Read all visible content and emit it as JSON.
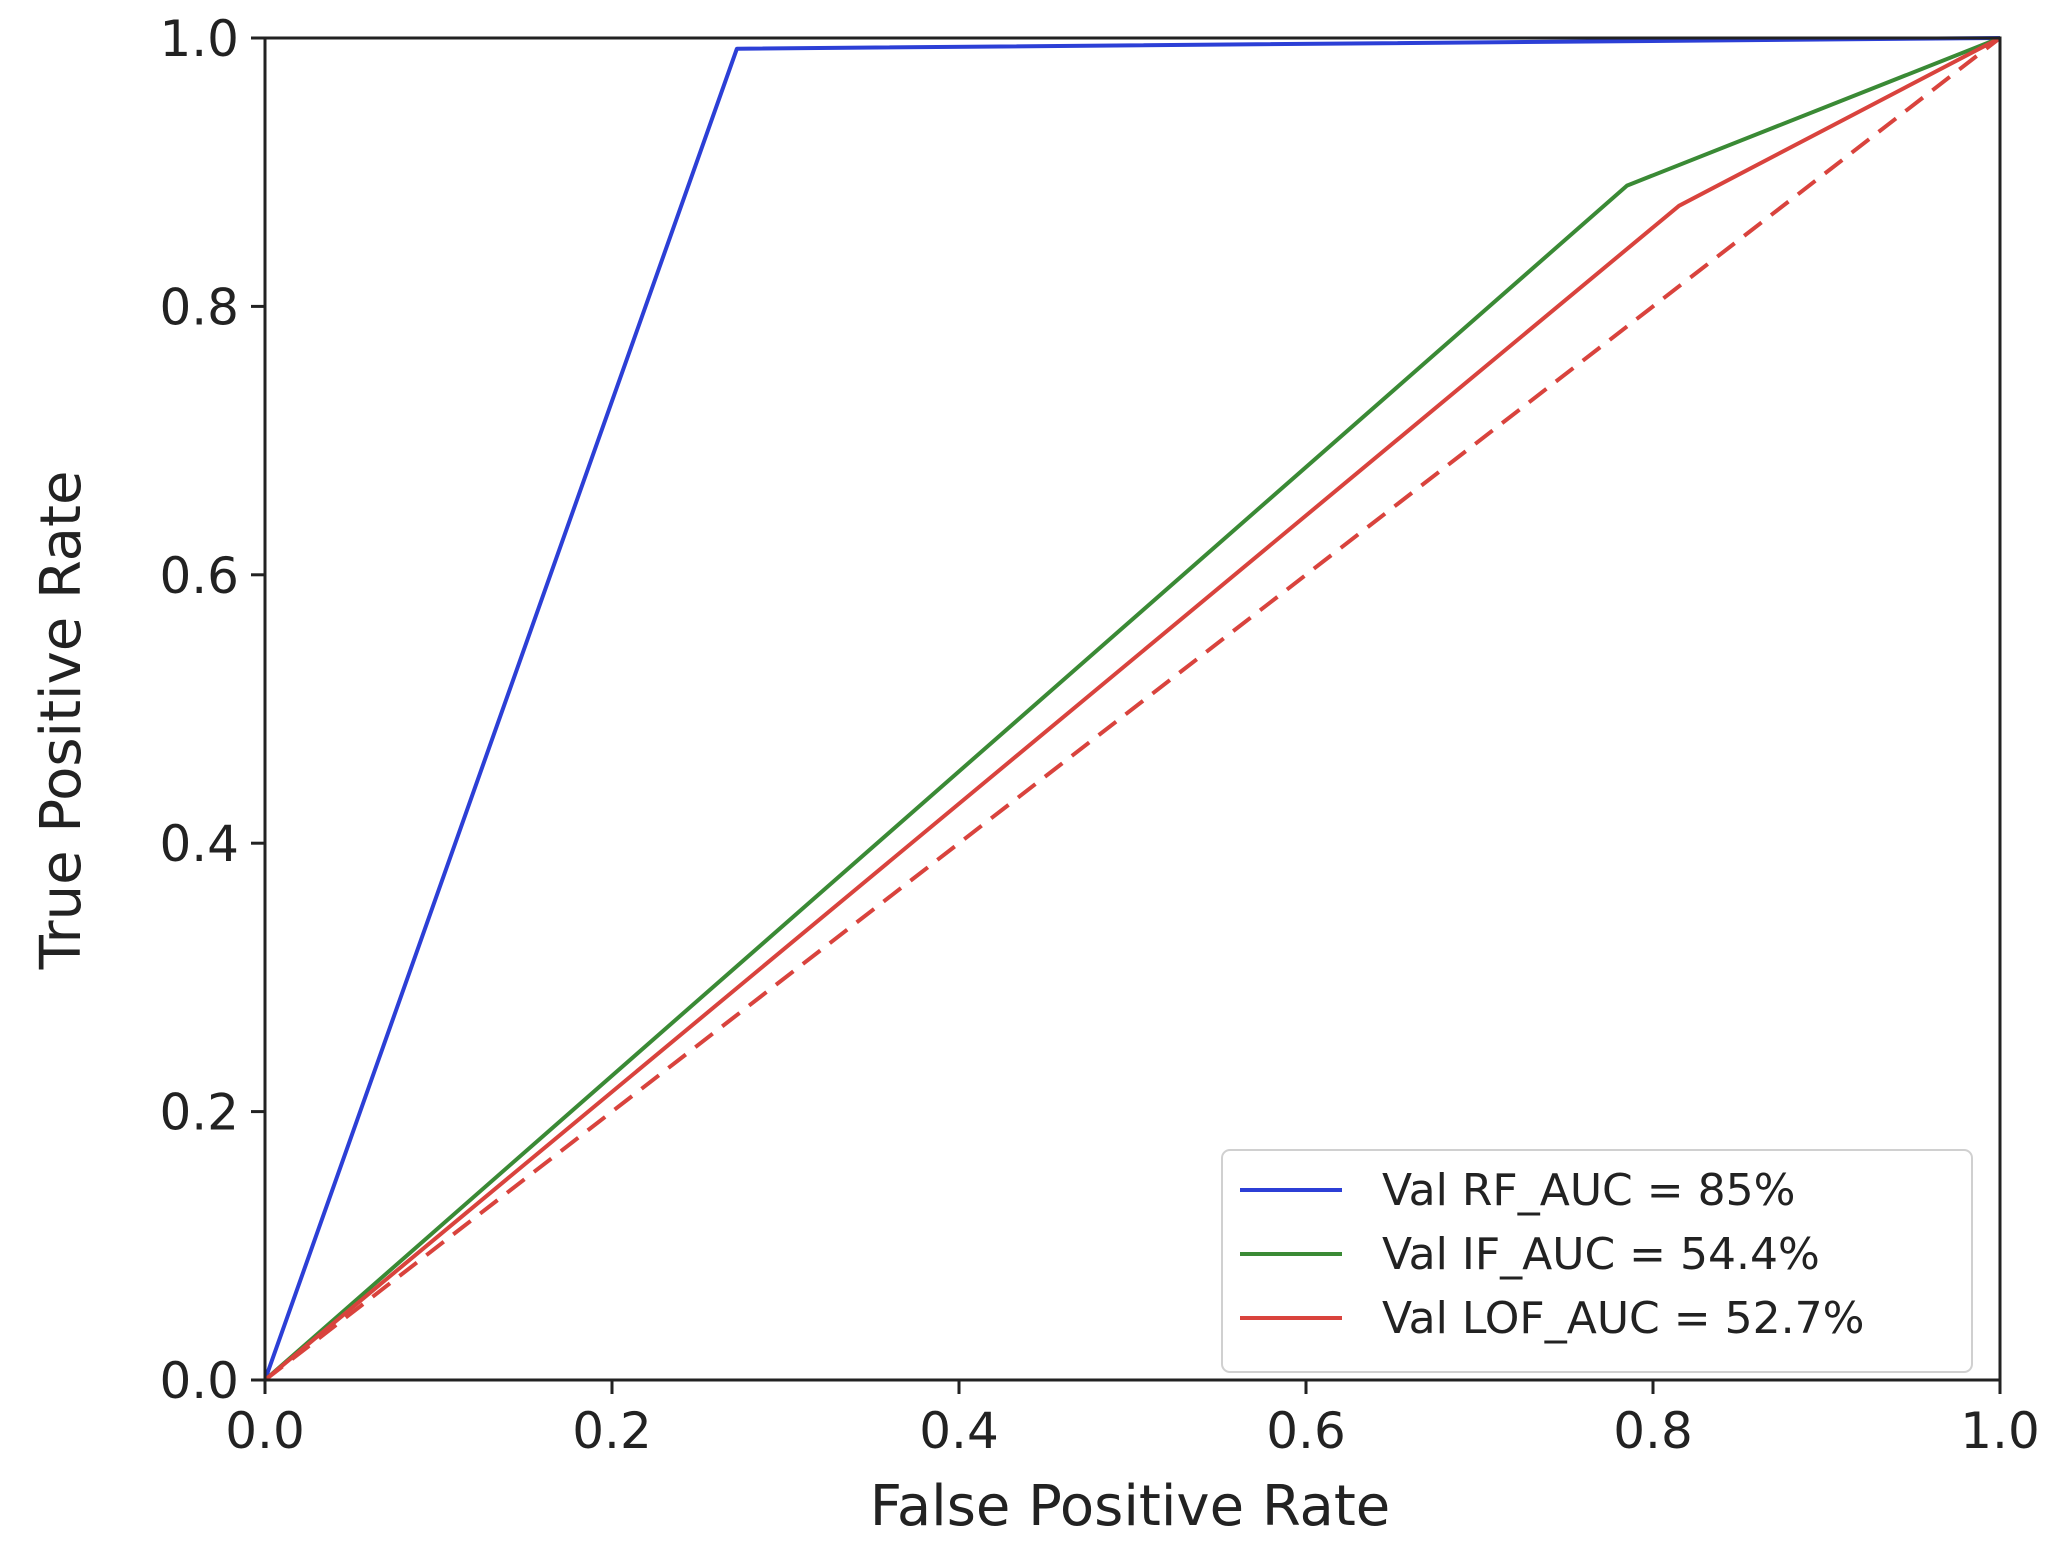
{
  "chart_data": {
    "type": "line",
    "title": "",
    "xlabel": "False Positive Rate",
    "ylabel": "True Positive Rate",
    "xlim": [
      0.0,
      1.0
    ],
    "ylim": [
      0.0,
      1.0
    ],
    "xticks": [
      "0.0",
      "0.2",
      "0.4",
      "0.6",
      "0.8",
      "1.0"
    ],
    "yticks": [
      "0.0",
      "0.2",
      "0.4",
      "0.6",
      "0.8",
      "1.0"
    ],
    "grid": false,
    "legend_position": "lower-right",
    "series": [
      {
        "name": "Val RF_AUC = 85%",
        "color": "#2c3fd6",
        "style": "solid",
        "x": [
          0.0,
          0.272,
          1.0
        ],
        "y": [
          0.0,
          0.992,
          1.0
        ]
      },
      {
        "name": "Val IF_AUC = 54.4%",
        "color": "#3a8a35",
        "style": "solid",
        "x": [
          0.0,
          0.785,
          1.0
        ],
        "y": [
          0.0,
          0.89,
          1.0
        ]
      },
      {
        "name": "Val LOF_AUC = 52.7%",
        "color": "#d9433d",
        "style": "solid",
        "x": [
          0.0,
          0.815,
          1.0
        ],
        "y": [
          0.0,
          0.875,
          1.0
        ]
      },
      {
        "name": "",
        "color": "#d9433d",
        "style": "dashed",
        "x": [
          0.0,
          1.0
        ],
        "y": [
          0.0,
          1.0
        ]
      }
    ]
  }
}
